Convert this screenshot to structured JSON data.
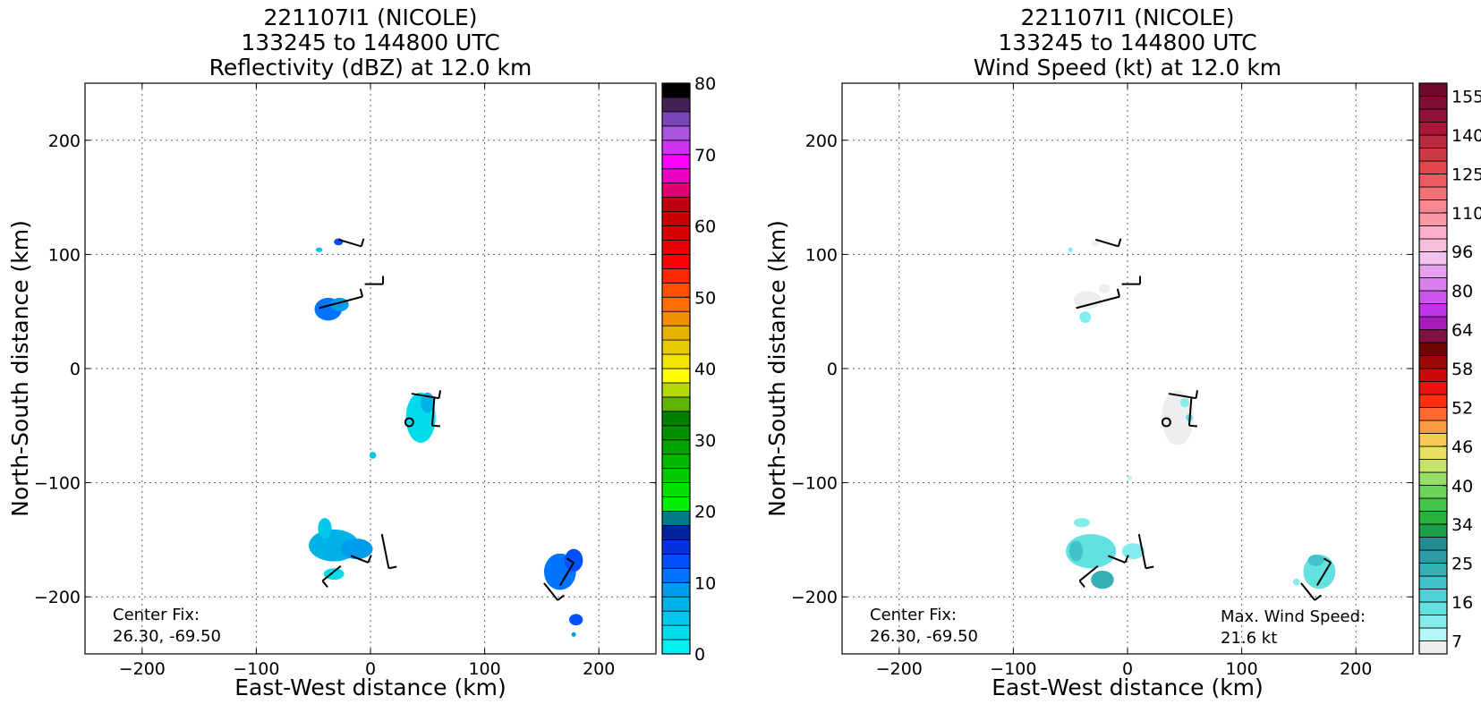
{
  "chart_data": [
    {
      "type": "heatmap",
      "title_lines": [
        "221107I1 (NICOLE)",
        "133245 to 144800 UTC",
        "Reflectivity (dBZ) at 12.0 km"
      ],
      "xlabel": "East-West distance (km)",
      "ylabel": "North-South distance (km)",
      "xlim": [
        -250,
        250
      ],
      "ylim": [
        -250,
        250
      ],
      "xticks": [
        -200,
        -100,
        0,
        100,
        200
      ],
      "yticks": [
        -200,
        -100,
        0,
        100,
        200
      ],
      "grid": true,
      "annotation": [
        "Center Fix:",
        "26.30, -69.50"
      ],
      "center_marker": [
        34,
        -47
      ],
      "colorbar": {
        "label_values": [
          "0",
          "10",
          "20",
          "30",
          "40",
          "50",
          "60",
          "70",
          "80"
        ],
        "label_fractions": [
          0,
          0.125,
          0.25,
          0.375,
          0.5,
          0.625,
          0.75,
          0.875,
          1
        ],
        "colors": [
          "#00efef",
          "#00dcec",
          "#00c8ea",
          "#00b2e8",
          "#009cec",
          "#0074ff",
          "#0050ff",
          "#0032e0",
          "#00229e",
          "#017a8a",
          "#00ee00",
          "#00e000",
          "#00cc00",
          "#00b800",
          "#00a300",
          "#009000",
          "#008000",
          "#5eb400",
          "#b4d800",
          "#ffff00",
          "#f2e400",
          "#e6ca00",
          "#e6b000",
          "#f09000",
          "#ff7000",
          "#ff5000",
          "#ff2800",
          "#ff0000",
          "#e80000",
          "#d60000",
          "#c80000",
          "#c00010",
          "#e00070",
          "#ee00c0",
          "#ff00ff",
          "#cc33ee",
          "#aa55dd",
          "#7a44bb",
          "#442255",
          "#000000"
        ]
      },
      "data_regions": [
        {
          "cx": -28,
          "cy": 111,
          "rx": 4,
          "ry": 3,
          "color": "#0050ff"
        },
        {
          "cx": -45,
          "cy": 104,
          "rx": 3,
          "ry": 2,
          "color": "#00c8ea"
        },
        {
          "cx": -37,
          "cy": 52,
          "rx": 12,
          "ry": 10,
          "color": "#0074ff"
        },
        {
          "cx": -27,
          "cy": 56,
          "rx": 8,
          "ry": 6,
          "color": "#009cec"
        },
        {
          "cx": 44,
          "cy": -43,
          "rx": 13,
          "ry": 22,
          "color": "#00dcec"
        },
        {
          "cx": 50,
          "cy": -30,
          "rx": 6,
          "ry": 9,
          "color": "#00b2e8"
        },
        {
          "cx": 2,
          "cy": -76,
          "rx": 3,
          "ry": 3,
          "color": "#00c8ea"
        },
        {
          "cx": -32,
          "cy": -155,
          "rx": 22,
          "ry": 14,
          "color": "#00b2e8"
        },
        {
          "cx": -12,
          "cy": -158,
          "rx": 14,
          "ry": 9,
          "color": "#009cec"
        },
        {
          "cx": -40,
          "cy": -140,
          "rx": 6,
          "ry": 9,
          "color": "#00c8ea"
        },
        {
          "cx": -32,
          "cy": -180,
          "rx": 9,
          "ry": 5,
          "color": "#00dcec"
        },
        {
          "cx": 166,
          "cy": -178,
          "rx": 14,
          "ry": 16,
          "color": "#0074ff"
        },
        {
          "cx": 178,
          "cy": -168,
          "rx": 8,
          "ry": 10,
          "color": "#0050ff"
        },
        {
          "cx": 180,
          "cy": -220,
          "rx": 6,
          "ry": 5,
          "color": "#0050ff"
        },
        {
          "cx": 178,
          "cy": -233,
          "rx": 2,
          "ry": 2,
          "color": "#009cec"
        }
      ],
      "barbs": [
        {
          "x": -28,
          "y": 113,
          "dx": 20,
          "dy": -6
        },
        {
          "x": -5,
          "y": 74,
          "dx": 16,
          "dy": 0
        },
        {
          "x": -45,
          "y": 53,
          "dx": 38,
          "dy": 10
        },
        {
          "x": 36,
          "y": -22,
          "dx": 24,
          "dy": -4
        },
        {
          "x": 56,
          "y": -25,
          "dx": -2,
          "dy": -25
        },
        {
          "x": -17,
          "y": -164,
          "dx": 15,
          "dy": -6
        },
        {
          "x": -26,
          "y": -173,
          "dx": -16,
          "dy": -13
        },
        {
          "x": 10,
          "y": -145,
          "dx": 6,
          "dy": -30
        },
        {
          "x": 166,
          "y": -190,
          "dx": 12,
          "dy": 20
        },
        {
          "x": 152,
          "y": -188,
          "dx": 12,
          "dy": -15
        }
      ]
    },
    {
      "type": "heatmap",
      "title_lines": [
        "221107I1 (NICOLE)",
        "133245 to 144800 UTC",
        "Wind Speed (kt) at 12.0 km"
      ],
      "xlabel": "East-West distance (km)",
      "ylabel": "North-South distance (km)",
      "xlim": [
        -250,
        250
      ],
      "ylim": [
        -250,
        250
      ],
      "xticks": [
        -200,
        -100,
        0,
        100,
        200
      ],
      "yticks": [
        -200,
        -100,
        0,
        100,
        200
      ],
      "grid": true,
      "annotation": [
        "Center Fix:",
        "26.30, -69.50"
      ],
      "max_annotation": [
        "Max. Wind Speed:",
        "21.6 kt"
      ],
      "center_marker": [
        34,
        -47
      ],
      "colorbar": {
        "label_values": [
          "7",
          "16",
          "25",
          "34",
          "40",
          "46",
          "52",
          "58",
          "64",
          "80",
          "96",
          "110",
          "125",
          "140",
          "155"
        ],
        "label_fractions": [
          0.0227,
          0.0909,
          0.159,
          0.227,
          0.295,
          0.364,
          0.432,
          0.5,
          0.568,
          0.636,
          0.705,
          0.773,
          0.841,
          0.909,
          0.977
        ],
        "colors": [
          "#eeeeee",
          "#b6f5f5",
          "#84ecec",
          "#63e0e0",
          "#4fd2d6",
          "#40c2c8",
          "#36afb6",
          "#2d9ca4",
          "#238b92",
          "#1da04a",
          "#28b23c",
          "#44c448",
          "#6cd45a",
          "#96de64",
          "#c8e466",
          "#e8e060",
          "#f8cc54",
          "#ff9a40",
          "#ff6a30",
          "#ff3010",
          "#ee1010",
          "#cc0a0a",
          "#9a0808",
          "#6e0404",
          "#7e1044",
          "#a81cba",
          "#c034ea",
          "#cc55ef",
          "#d880ee",
          "#e4a2ee",
          "#f0c4ee",
          "#f6c0dc",
          "#fab0cc",
          "#fa98a8",
          "#f88890",
          "#f27278",
          "#ec5a60",
          "#e0484e",
          "#ce3a44",
          "#b82a3e",
          "#a8183a",
          "#901236",
          "#7e0e32",
          "#6e0a2c"
        ]
      },
      "data_regions": [
        {
          "cx": -28,
          "cy": 110,
          "rx": 4,
          "ry": 3,
          "color": "#eeeeee"
        },
        {
          "cx": -50,
          "cy": 104,
          "rx": 2,
          "ry": 2,
          "color": "#84ecec"
        },
        {
          "cx": -35,
          "cy": 60,
          "rx": 12,
          "ry": 8,
          "color": "#eeeeee"
        },
        {
          "cx": -37,
          "cy": 45,
          "rx": 5,
          "ry": 5,
          "color": "#84ecec"
        },
        {
          "cx": -20,
          "cy": 70,
          "rx": 5,
          "ry": 4,
          "color": "#eeeeee"
        },
        {
          "cx": 44,
          "cy": -43,
          "rx": 14,
          "ry": 24,
          "color": "#eeeeee"
        },
        {
          "cx": 50,
          "cy": -30,
          "rx": 4,
          "ry": 4,
          "color": "#84ecec"
        },
        {
          "cx": 54,
          "cy": -43,
          "rx": 3,
          "ry": 3,
          "color": "#63e0e0"
        },
        {
          "cx": 2,
          "cy": -96,
          "rx": 2,
          "ry": 2,
          "color": "#b6f5f5"
        },
        {
          "cx": -32,
          "cy": -160,
          "rx": 22,
          "ry": 15,
          "color": "#63e0e0"
        },
        {
          "cx": -22,
          "cy": -185,
          "rx": 10,
          "ry": 8,
          "color": "#36afb6"
        },
        {
          "cx": -45,
          "cy": -160,
          "rx": 6,
          "ry": 9,
          "color": "#40c2c8"
        },
        {
          "cx": -40,
          "cy": -135,
          "rx": 7,
          "ry": 4,
          "color": "#84ecec"
        },
        {
          "cx": 5,
          "cy": -160,
          "rx": 10,
          "ry": 7,
          "color": "#84ecec"
        },
        {
          "cx": 168,
          "cy": -178,
          "rx": 14,
          "ry": 15,
          "color": "#63e0e0"
        },
        {
          "cx": 165,
          "cy": -168,
          "rx": 7,
          "ry": 5,
          "color": "#40c2c8"
        },
        {
          "cx": 148,
          "cy": -187,
          "rx": 3,
          "ry": 3,
          "color": "#84ecec"
        }
      ],
      "barbs": [
        {
          "x": -28,
          "y": 113,
          "dx": 20,
          "dy": -6
        },
        {
          "x": -5,
          "y": 74,
          "dx": 16,
          "dy": 0
        },
        {
          "x": -45,
          "y": 53,
          "dx": 38,
          "dy": 10
        },
        {
          "x": 36,
          "y": -22,
          "dx": 24,
          "dy": -4
        },
        {
          "x": 56,
          "y": -25,
          "dx": -2,
          "dy": -25
        },
        {
          "x": -17,
          "y": -164,
          "dx": 15,
          "dy": -6
        },
        {
          "x": -26,
          "y": -173,
          "dx": -16,
          "dy": -13
        },
        {
          "x": 10,
          "y": -145,
          "dx": 6,
          "dy": -30
        },
        {
          "x": 166,
          "y": -190,
          "dx": 12,
          "dy": 20
        },
        {
          "x": 152,
          "y": -188,
          "dx": 12,
          "dy": -15
        }
      ]
    }
  ]
}
